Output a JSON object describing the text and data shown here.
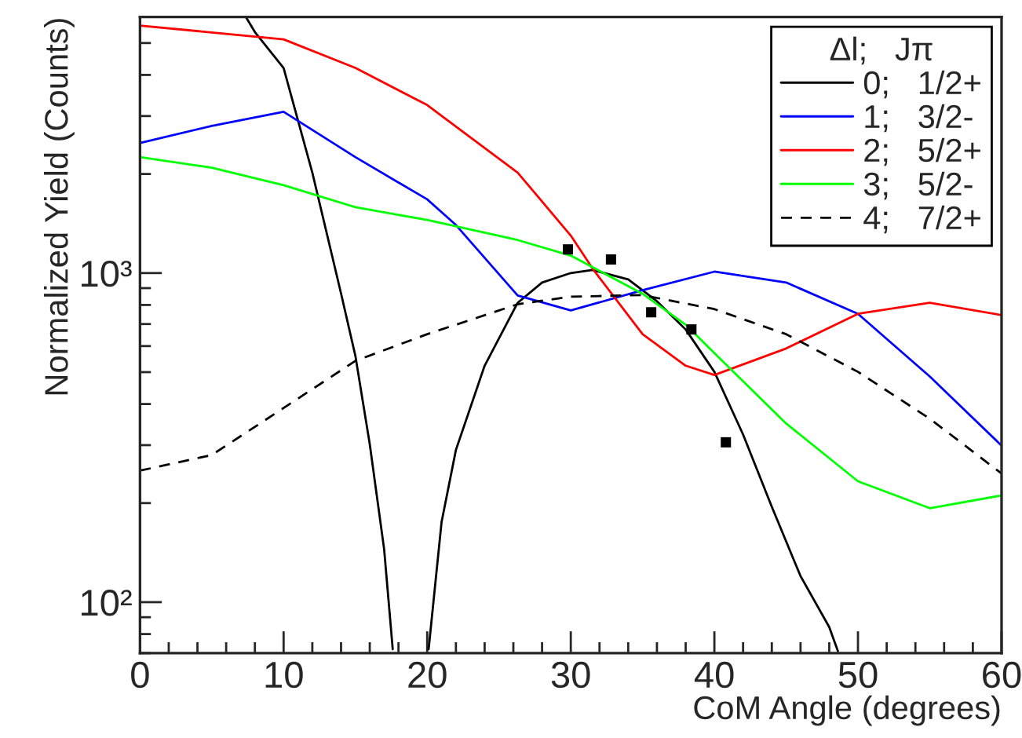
{
  "chart_data": {
    "type": "line",
    "xlabel": "CoM Angle (degrees)",
    "ylabel": "Normalized Yield (Counts)",
    "legend_title": "Δl;   Jπ",
    "log": "y",
    "xlim": [
      0,
      60
    ],
    "ylim": [
      70,
      6000
    ],
    "xticks": [
      0,
      10,
      20,
      30,
      40,
      50,
      60
    ],
    "yticks": [
      {
        "value": 100,
        "label": "10²"
      },
      {
        "value": 1000,
        "label": "10³"
      }
    ],
    "grid": false,
    "legend": "top right",
    "series": [
      {
        "name": "0;   1/2+",
        "color": "#000000",
        "line_style": "solid",
        "x": [
          7.4,
          8,
          10,
          12,
          14,
          15,
          16,
          17,
          17.6,
          18.8,
          20.1,
          21,
          22,
          24,
          26.3,
          28,
          30,
          31.5,
          34,
          36,
          38,
          40,
          42,
          44,
          46,
          48,
          48.6
        ],
        "values": [
          5970,
          5400,
          4200,
          2020,
          867,
          560,
          302,
          145,
          72,
          null,
          72,
          175,
          290,
          523,
          812,
          936,
          1000,
          1022,
          957,
          821,
          674,
          501,
          323,
          195,
          120,
          84,
          71
        ]
      },
      {
        "name": "1;   3/2-",
        "color": "#0000ff",
        "line_style": "solid",
        "x": [
          0,
          5,
          10,
          15,
          20,
          22,
          26.3,
          30,
          35,
          40,
          45,
          50,
          55,
          60
        ],
        "values": [
          2485,
          2800,
          3090,
          2250,
          1675,
          1400,
          855,
          770,
          887,
          1010,
          936,
          752,
          485,
          299
        ]
      },
      {
        "name": "2;   5/2+",
        "color": "#ff0000",
        "line_style": "solid",
        "x": [
          0,
          10,
          15,
          20,
          26.3,
          30,
          31.6,
          35,
          38,
          40,
          45,
          50,
          55,
          60
        ],
        "values": [
          5650,
          5130,
          4200,
          3240,
          2020,
          1300,
          1020,
          652,
          523,
          490,
          590,
          752,
          812,
          745
        ]
      },
      {
        "name": "3;   5/2-",
        "color": "#00ff00",
        "line_style": "solid",
        "x": [
          0,
          5,
          10,
          15,
          20,
          26.3,
          30,
          35,
          38,
          40,
          45,
          50,
          55,
          60
        ],
        "values": [
          2250,
          2090,
          1850,
          1585,
          1450,
          1260,
          1130,
          865,
          697,
          571,
          349,
          233,
          193,
          211
        ]
      },
      {
        "name": "4;   7/2+",
        "color": "#000000",
        "line_style": "dashed",
        "x": [
          0,
          5,
          10,
          15,
          20,
          26.3,
          30,
          35,
          40,
          45,
          50,
          55,
          60
        ],
        "values": [
          251,
          280,
          389,
          541,
          652,
          804,
          848,
          857,
          777,
          652,
          501,
          361,
          246
        ]
      },
      {
        "type": "scatter",
        "color": "#000000",
        "marker": "square",
        "x": [
          29.8,
          32.8,
          35.6,
          38.4,
          40.8
        ],
        "values": [
          1180,
          1100,
          760,
          674,
          306
        ]
      }
    ]
  }
}
